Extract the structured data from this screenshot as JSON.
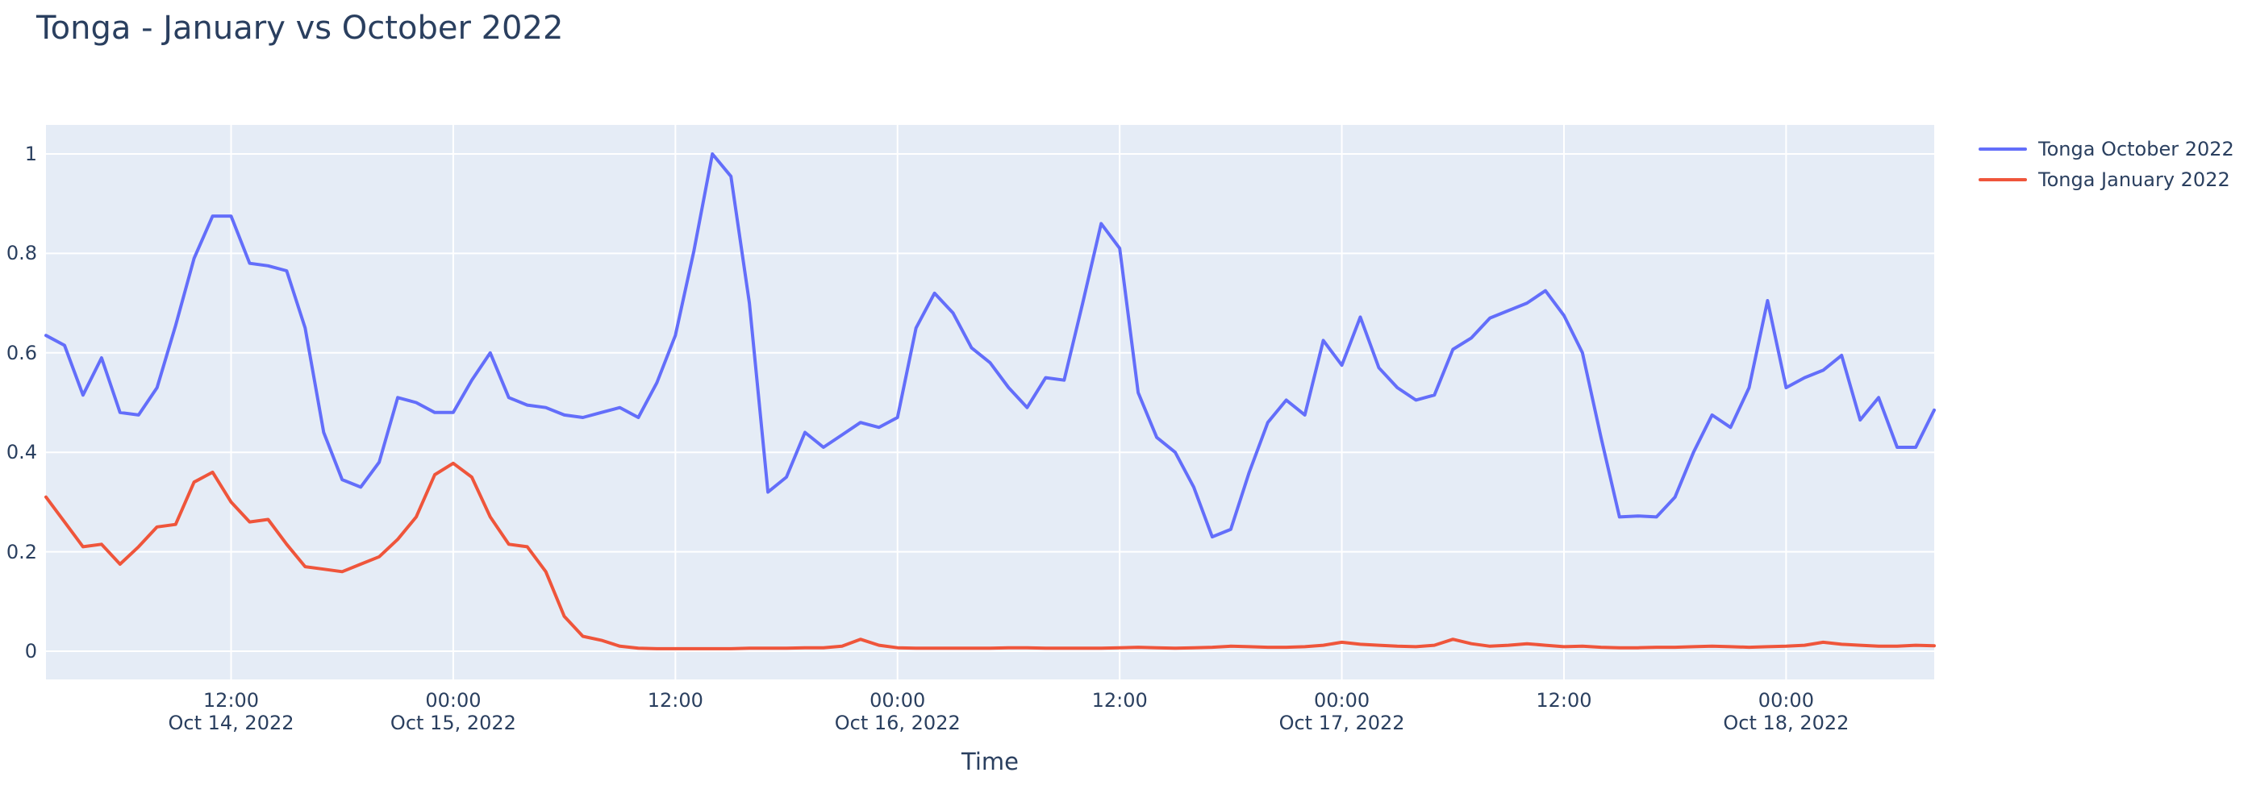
{
  "title": "Tonga - January vs October 2022",
  "colors": {
    "plot_background": "#E5ECF6",
    "grid": "#FFFFFF",
    "text": "#2a3f5f",
    "series_october": "#636EFA",
    "series_january": "#EF553B"
  },
  "chart_data": {
    "type": "line",
    "title": "Tonga - January vs October 2022",
    "xlabel": "Time",
    "ylabel": "",
    "x_start": "2022-10-14 02:00",
    "x_step_hours": 1,
    "x_end": "2022-10-18 08:00",
    "ylim": [
      -0.057,
      1.057
    ],
    "grid": true,
    "legend_position": "top-right-outside",
    "y_ticks": [
      "0",
      "0.2",
      "0.4",
      "0.6",
      "0.8",
      "1"
    ],
    "y_tick_values": [
      0,
      0.2,
      0.4,
      0.6,
      0.8,
      1
    ],
    "x_ticks": [
      {
        "hour_offset": 10,
        "time": "12:00",
        "date": "Oct 14, 2022"
      },
      {
        "hour_offset": 22,
        "time": "00:00",
        "date": "Oct 15, 2022"
      },
      {
        "hour_offset": 34,
        "time": "12:00",
        "date": ""
      },
      {
        "hour_offset": 46,
        "time": "00:00",
        "date": "Oct 16, 2022"
      },
      {
        "hour_offset": 58,
        "time": "12:00",
        "date": ""
      },
      {
        "hour_offset": 70,
        "time": "00:00",
        "date": "Oct 17, 2022"
      },
      {
        "hour_offset": 82,
        "time": "12:00",
        "date": ""
      },
      {
        "hour_offset": 94,
        "time": "00:00",
        "date": "Oct 18, 2022"
      }
    ],
    "series": [
      {
        "name": "Tonga October 2022",
        "color": "#636EFA",
        "values": [
          0.635,
          0.615,
          0.515,
          0.59,
          0.48,
          0.475,
          0.53,
          0.655,
          0.79,
          0.875,
          0.875,
          0.78,
          0.775,
          0.765,
          0.65,
          0.44,
          0.345,
          0.33,
          0.38,
          0.51,
          0.5,
          0.48,
          0.48,
          0.545,
          0.6,
          0.51,
          0.495,
          0.49,
          0.475,
          0.47,
          0.48,
          0.49,
          0.47,
          0.54,
          0.635,
          0.805,
          1.0,
          0.955,
          0.7,
          0.32,
          0.35,
          0.44,
          0.41,
          0.435,
          0.46,
          0.45,
          0.47,
          0.65,
          0.72,
          0.68,
          0.61,
          0.58,
          0.53,
          0.49,
          0.55,
          0.545,
          0.7,
          0.86,
          0.81,
          0.52,
          0.43,
          0.4,
          0.33,
          0.23,
          0.245,
          0.36,
          0.46,
          0.505,
          0.475,
          0.625,
          0.575,
          0.672,
          0.57,
          0.53,
          0.505,
          0.515,
          0.607,
          0.63,
          0.67,
          0.685,
          0.7,
          0.725,
          0.675,
          0.6,
          0.43,
          0.27,
          0.272,
          0.27,
          0.31,
          0.4,
          0.475,
          0.45,
          0.53,
          0.705,
          0.53,
          0.55,
          0.565,
          0.595,
          0.465,
          0.51,
          0.41,
          0.41,
          0.485
        ]
      },
      {
        "name": "Tonga January 2022",
        "color": "#EF553B",
        "values": [
          0.31,
          0.26,
          0.21,
          0.215,
          0.175,
          0.21,
          0.25,
          0.255,
          0.34,
          0.36,
          0.3,
          0.26,
          0.265,
          0.215,
          0.17,
          0.165,
          0.16,
          0.175,
          0.19,
          0.225,
          0.27,
          0.355,
          0.378,
          0.35,
          0.27,
          0.215,
          0.21,
          0.16,
          0.07,
          0.03,
          0.022,
          0.01,
          0.006,
          0.005,
          0.005,
          0.005,
          0.005,
          0.005,
          0.006,
          0.006,
          0.006,
          0.007,
          0.007,
          0.01,
          0.024,
          0.012,
          0.007,
          0.006,
          0.006,
          0.006,
          0.006,
          0.006,
          0.007,
          0.007,
          0.006,
          0.006,
          0.006,
          0.006,
          0.007,
          0.008,
          0.007,
          0.006,
          0.007,
          0.008,
          0.01,
          0.009,
          0.008,
          0.008,
          0.009,
          0.012,
          0.018,
          0.014,
          0.012,
          0.01,
          0.009,
          0.012,
          0.024,
          0.015,
          0.01,
          0.012,
          0.015,
          0.012,
          0.009,
          0.01,
          0.008,
          0.007,
          0.007,
          0.008,
          0.008,
          0.009,
          0.01,
          0.009,
          0.008,
          0.009,
          0.01,
          0.012,
          0.018,
          0.014,
          0.012,
          0.01,
          0.01,
          0.012,
          0.011
        ]
      }
    ]
  }
}
